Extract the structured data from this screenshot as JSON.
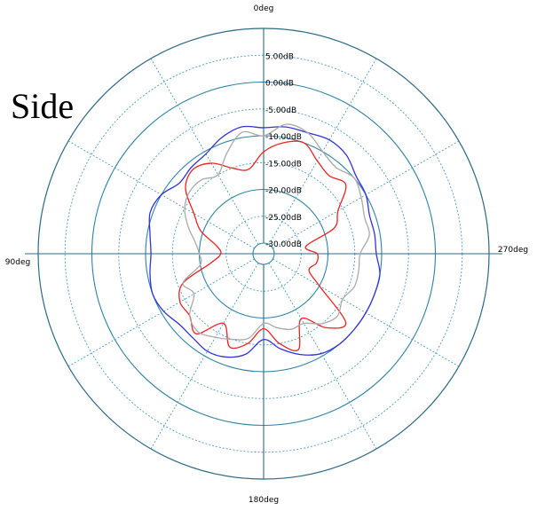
{
  "figure": {
    "side_label": "Side"
  },
  "chart_data": {
    "type": "polar-line",
    "title": "",
    "angle_direction": "counter-clockwise",
    "zero_angle": "top",
    "angle_labels": [
      {
        "angle": 0,
        "label": "0deg"
      },
      {
        "angle": 90,
        "label": "90deg"
      },
      {
        "angle": 180,
        "label": "180deg"
      },
      {
        "angle": 270,
        "label": "270deg"
      }
    ],
    "radial_ticks": [
      {
        "value": 5,
        "label": "5.00dB"
      },
      {
        "value": 0,
        "label": "0.00dB"
      },
      {
        "value": -5,
        "label": "-5.00dB"
      },
      {
        "value": -10,
        "label": "-10.00dB"
      },
      {
        "value": -15,
        "label": "-15.00dB"
      },
      {
        "value": -20,
        "label": "-20.00dB"
      },
      {
        "value": -25,
        "label": "-25.00dB"
      },
      {
        "value": -30,
        "label": "-30.00dB"
      }
    ],
    "rlim": [
      -30,
      10
    ],
    "grid": true,
    "angles": [
      0,
      10,
      20,
      30,
      40,
      50,
      60,
      70,
      80,
      90,
      100,
      110,
      120,
      130,
      140,
      150,
      160,
      170,
      180,
      190,
      200,
      210,
      220,
      230,
      240,
      250,
      260,
      270,
      280,
      290,
      300,
      310,
      320,
      330,
      340,
      350
    ],
    "series": [
      {
        "color": "#3333dd",
        "values": [
          -8.5,
          -8,
          -9,
          -10.5,
          -11,
          -11.5,
          -10,
          -9.5,
          -10.5,
          -11,
          -10.5,
          -10,
          -10.5,
          -11.5,
          -11.5,
          -11,
          -11.5,
          -13,
          -16,
          -14,
          -12,
          -10.5,
          -10,
          -10,
          -10,
          -10,
          -10,
          -11,
          -11,
          -11,
          -10,
          -9.5,
          -8,
          -7.5,
          -8,
          -8
        ]
      },
      {
        "color": "#ee2222",
        "values": [
          -13,
          -16,
          -15,
          -12.5,
          -11.5,
          -13,
          -17,
          -19.5,
          -23,
          -24,
          -22,
          -16,
          -14,
          -14,
          -12.5,
          -17,
          -13.5,
          -15,
          -18,
          -15,
          -13,
          -18,
          -14,
          -12,
          -20,
          -23,
          -22,
          -22,
          -24,
          -18,
          -16,
          -12,
          -13,
          -12,
          -10,
          -11
        ]
      },
      {
        "color": "#aaaaaa",
        "values": [
          -10,
          -9,
          -12,
          -15,
          -14,
          -14,
          -15,
          -17,
          -19,
          -20,
          -20,
          -16,
          -17,
          -14,
          -13,
          -14,
          -15,
          -16,
          -19,
          -18,
          -17,
          -17,
          -15,
          -14,
          -15,
          -14,
          -14,
          -14,
          -12,
          -12,
          -11,
          -10,
          -11,
          -10,
          -8,
          -7.5
        ]
      }
    ]
  }
}
